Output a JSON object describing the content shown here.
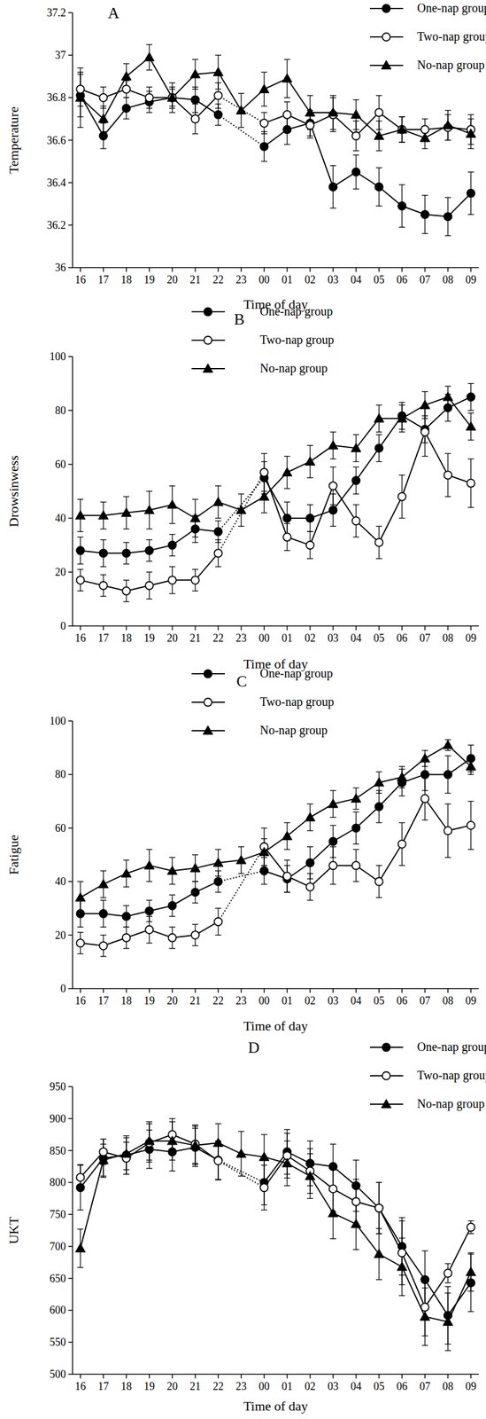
{
  "chart_data": [
    {
      "type": "line",
      "title": "A",
      "x_label": "Time of day",
      "y_label": "Temperature",
      "categories": [
        "16",
        "17",
        "18",
        "19",
        "20",
        "21",
        "22",
        "23",
        "00",
        "01",
        "02",
        "03",
        "04",
        "05",
        "06",
        "07",
        "08",
        "09"
      ],
      "ylim": [
        36,
        37.2
      ],
      "yticks": [
        36,
        36.2,
        36.4,
        36.6,
        36.8,
        37,
        37.2
      ],
      "legend": "upper right",
      "series": [
        {
          "name": "One-nap group",
          "color": "#000000",
          "marker": "circle",
          "line_style": "solid",
          "values": [
            36.81,
            36.62,
            36.75,
            36.78,
            36.8,
            36.79,
            36.72,
            null,
            36.57,
            36.65,
            36.68,
            36.38,
            36.45,
            36.38,
            36.29,
            36.25,
            36.24,
            36.35
          ],
          "errors": [
            0.1,
            0.06,
            0.05,
            0.05,
            0.05,
            0.06,
            0.05,
            null,
            0.07,
            0.07,
            0.06,
            0.1,
            0.08,
            0.09,
            0.1,
            0.09,
            0.09,
            0.1
          ]
        },
        {
          "name": "Two-nap group",
          "color": "#000000",
          "marker": "open-circle",
          "line_style": "solid",
          "values": [
            36.84,
            36.8,
            36.84,
            36.8,
            36.8,
            36.7,
            36.81,
            null,
            36.68,
            36.72,
            36.67,
            36.72,
            36.62,
            36.73,
            36.65,
            36.65,
            36.66,
            36.65
          ],
          "errors": [
            0.08,
            0.05,
            0.04,
            0.05,
            0.04,
            0.07,
            0.06,
            null,
            0.05,
            0.06,
            0.06,
            0.08,
            0.07,
            0.08,
            0.06,
            0.05,
            0.06,
            0.07
          ]
        },
        {
          "name": "No-nap group",
          "color": "#000000",
          "marker": "triangle",
          "line_style": "solid",
          "values": [
            36.8,
            36.7,
            36.9,
            36.99,
            36.8,
            36.91,
            36.92,
            36.74,
            36.84,
            36.89,
            36.73,
            36.73,
            36.72,
            36.62,
            36.65,
            36.61,
            36.67,
            36.63
          ],
          "errors": [
            0.14,
            0.06,
            0.06,
            0.06,
            0.07,
            0.07,
            0.08,
            0.08,
            0.08,
            0.09,
            0.08,
            0.08,
            0.07,
            0.07,
            0.06,
            0.05,
            0.07,
            0.07
          ]
        }
      ]
    },
    {
      "type": "line",
      "title": "B",
      "x_label": "Time of day",
      "y_label": "Drowsinwess",
      "categories": [
        "16",
        "17",
        "18",
        "19",
        "20",
        "21",
        "22",
        "23",
        "00",
        "01",
        "02",
        "03",
        "04",
        "05",
        "06",
        "07",
        "08",
        "09"
      ],
      "ylim": [
        0,
        100
      ],
      "yticks": [
        0,
        20,
        40,
        60,
        80,
        100
      ],
      "legend": "upper center",
      "series": [
        {
          "name": "One-nap group",
          "color": "#000000",
          "marker": "circle",
          "line_style": "solid",
          "values": [
            28,
            27,
            27,
            28,
            30,
            36,
            35,
            null,
            55,
            40,
            40,
            43,
            54,
            66,
            78,
            73,
            81,
            85
          ],
          "errors": [
            5,
            5,
            4,
            4,
            4,
            5,
            4,
            null,
            6,
            6,
            5,
            6,
            5,
            5,
            5,
            5,
            5,
            5
          ]
        },
        {
          "name": "Two-nap group",
          "color": "#000000",
          "marker": "open-circle",
          "line_style": "solid",
          "values": [
            17,
            15,
            13,
            15,
            17,
            17,
            27,
            null,
            57,
            33,
            30,
            52,
            39,
            31,
            48,
            72,
            56,
            53
          ],
          "errors": [
            4,
            4,
            4,
            5,
            5,
            4,
            5,
            null,
            7,
            5,
            5,
            7,
            6,
            6,
            8,
            9,
            8,
            9
          ]
        },
        {
          "name": "No-nap group",
          "color": "#000000",
          "marker": "triangle",
          "line_style": "solid",
          "values": [
            41,
            41,
            42,
            43,
            45,
            40,
            46,
            43,
            48,
            57,
            61,
            67,
            66,
            77,
            77,
            82,
            85,
            74
          ],
          "errors": [
            6,
            5,
            6,
            7,
            7,
            7,
            6,
            6,
            6,
            6,
            6,
            5,
            5,
            5,
            5,
            5,
            4,
            5
          ]
        }
      ]
    },
    {
      "type": "line",
      "title": "C",
      "x_label": "Time of day",
      "y_label": "Fatigue",
      "categories": [
        "16",
        "17",
        "18",
        "19",
        "20",
        "21",
        "22",
        "23",
        "00",
        "01",
        "02",
        "03",
        "04",
        "05",
        "06",
        "07",
        "08",
        "09"
      ],
      "ylim": [
        0,
        100
      ],
      "yticks": [
        0,
        20,
        40,
        60,
        80,
        100
      ],
      "legend": "upper center",
      "series": [
        {
          "name": "One-nap group",
          "color": "#000000",
          "marker": "circle",
          "line_style": "solid",
          "values": [
            28,
            28,
            27,
            29,
            31,
            36,
            40,
            null,
            44,
            41,
            47,
            55,
            60,
            68,
            77,
            80,
            80,
            86
          ],
          "errors": [
            5,
            5,
            4,
            4,
            4,
            4,
            4,
            null,
            5,
            5,
            6,
            6,
            6,
            6,
            5,
            6,
            7,
            5
          ]
        },
        {
          "name": "Two-nap group",
          "color": "#000000",
          "marker": "open-circle",
          "line_style": "solid",
          "values": [
            17,
            16,
            19,
            22,
            19,
            20,
            25,
            null,
            53,
            42,
            38,
            46,
            46,
            40,
            54,
            71,
            59,
            61
          ],
          "errors": [
            4,
            4,
            4,
            5,
            4,
            4,
            5,
            null,
            7,
            6,
            5,
            7,
            6,
            6,
            8,
            8,
            10,
            9
          ]
        },
        {
          "name": "No-nap group",
          "color": "#000000",
          "marker": "triangle",
          "line_style": "solid",
          "values": [
            34,
            39,
            43,
            46,
            44,
            45,
            47,
            48,
            51,
            57,
            64,
            69,
            71,
            77,
            79,
            86,
            91,
            83
          ],
          "errors": [
            6,
            5,
            5,
            6,
            5,
            5,
            5,
            5,
            5,
            5,
            5,
            5,
            4,
            4,
            4,
            3,
            2,
            3
          ]
        }
      ]
    },
    {
      "type": "line",
      "title": "D",
      "x_label": "Time of day",
      "y_label": "UKT",
      "categories": [
        "16",
        "17",
        "18",
        "19",
        "20",
        "21",
        "22",
        "23",
        "00",
        "01",
        "02",
        "03",
        "04",
        "05",
        "06",
        "07",
        "08",
        "09"
      ],
      "ylim": [
        500,
        950
      ],
      "yticks": [
        500,
        550,
        600,
        650,
        700,
        750,
        800,
        850,
        900,
        950
      ],
      "legend": "upper right",
      "series": [
        {
          "name": "One-nap group",
          "color": "#000000",
          "marker": "circle",
          "line_style": "solid",
          "values": [
            792,
            838,
            843,
            852,
            848,
            855,
            835,
            null,
            800,
            848,
            830,
            825,
            795,
            760,
            700,
            648,
            592,
            643
          ],
          "errors": [
            35,
            30,
            30,
            30,
            30,
            30,
            30,
            null,
            35,
            35,
            35,
            35,
            40,
            40,
            45,
            45,
            45,
            45
          ]
        },
        {
          "name": "Two-nap group",
          "color": "#000000",
          "marker": "open-circle",
          "line_style": "solid",
          "values": [
            808,
            848,
            838,
            862,
            875,
            860,
            834,
            null,
            792,
            842,
            818,
            790,
            770,
            760,
            690,
            605,
            658,
            730
          ],
          "errors": [
            20,
            20,
            25,
            30,
            25,
            30,
            30,
            null,
            35,
            35,
            35,
            35,
            35,
            40,
            50,
            45,
            15,
            10
          ]
        },
        {
          "name": "No-nap group",
          "color": "#000000",
          "marker": "triangle",
          "line_style": "solid",
          "values": [
            697,
            835,
            845,
            865,
            865,
            858,
            862,
            845,
            840,
            830,
            810,
            752,
            735,
            688,
            668,
            590,
            582,
            660
          ],
          "errors": [
            30,
            25,
            25,
            30,
            30,
            30,
            30,
            35,
            35,
            35,
            35,
            40,
            40,
            40,
            45,
            45,
            45,
            30
          ]
        }
      ]
    }
  ]
}
